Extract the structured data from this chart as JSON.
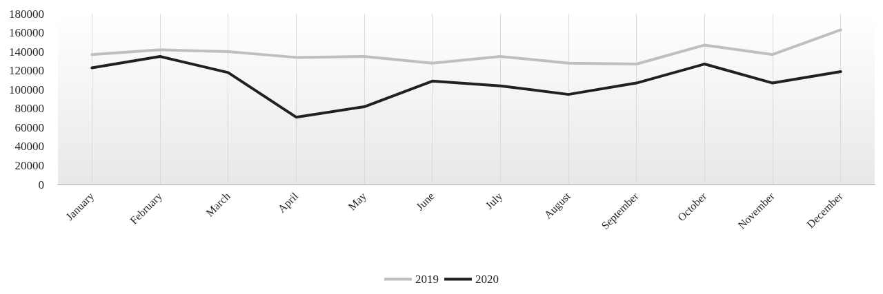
{
  "chart_data": {
    "type": "line",
    "categories": [
      "January",
      "February",
      "March",
      "April",
      "May",
      "June",
      "July",
      "August",
      "September",
      "October",
      "November",
      "December"
    ],
    "series": [
      {
        "name": "2019",
        "color": "#bfbfc3",
        "values": [
          137000,
          142000,
          140000,
          134000,
          135000,
          128000,
          135000,
          128000,
          127000,
          147000,
          137000,
          163000
        ]
      },
      {
        "name": "2020",
        "color": "#231f20",
        "values": [
          123000,
          135000,
          118000,
          71000,
          82000,
          109000,
          104000,
          95000,
          107000,
          127000,
          107000,
          119000
        ]
      }
    ],
    "ylim": [
      0,
      180000
    ],
    "yticks": [
      0,
      20000,
      40000,
      60000,
      80000,
      100000,
      120000,
      140000,
      160000,
      180000
    ],
    "grid": "x",
    "legend": "bottom",
    "marker": "none",
    "line_style": "solid"
  }
}
